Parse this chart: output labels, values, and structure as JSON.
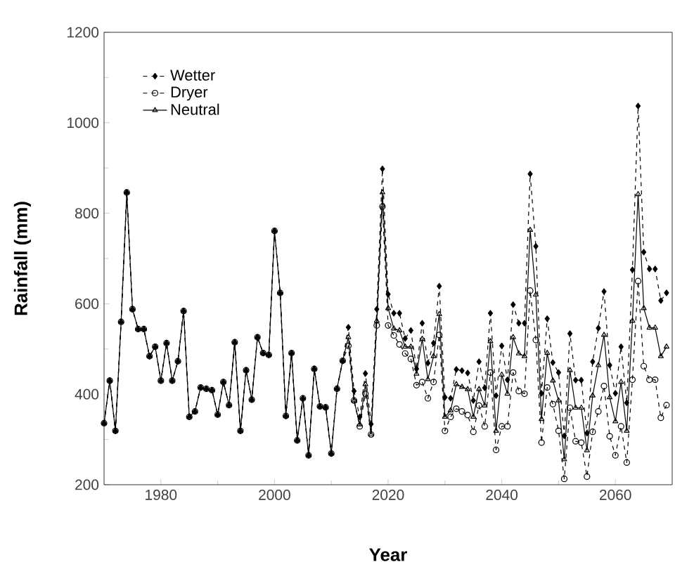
{
  "chart_data": {
    "type": "line",
    "xlabel": "Year",
    "ylabel": "Rainfall (mm)",
    "x": [
      1970,
      1971,
      1972,
      1973,
      1974,
      1975,
      1976,
      1977,
      1978,
      1979,
      1980,
      1981,
      1982,
      1983,
      1984,
      1985,
      1986,
      1987,
      1988,
      1989,
      1990,
      1991,
      1992,
      1993,
      1994,
      1995,
      1996,
      1997,
      1998,
      1999,
      2000,
      2001,
      2002,
      2003,
      2004,
      2005,
      2006,
      2007,
      2008,
      2009,
      2010,
      2011,
      2012,
      2013,
      2014,
      2015,
      2016,
      2017,
      2018,
      2019,
      2020,
      2021,
      2022,
      2023,
      2024,
      2025,
      2026,
      2027,
      2028,
      2029,
      2030,
      2031,
      2032,
      2033,
      2034,
      2035,
      2036,
      2037,
      2038,
      2039,
      2040,
      2041,
      2042,
      2043,
      2044,
      2045,
      2046,
      2047,
      2048,
      2049,
      2050,
      2051,
      2052,
      2053,
      2054,
      2055,
      2056,
      2057,
      2058,
      2059,
      2060,
      2061,
      2062,
      2063,
      2064,
      2065,
      2066,
      2067,
      2068,
      2069
    ],
    "series": [
      {
        "name": "Wetter",
        "color": "#000000",
        "marker": "diamond",
        "line_style": "dashed",
        "values": [
          336,
          430,
          319,
          560,
          846,
          588,
          544,
          544,
          484,
          505,
          430,
          513,
          430,
          473,
          584,
          350,
          362,
          415,
          412,
          409,
          355,
          427,
          376,
          515,
          319,
          453,
          388,
          526,
          491,
          487,
          761,
          624,
          352,
          491,
          298,
          391,
          265,
          456,
          373,
          371,
          269,
          412,
          474,
          548,
          407,
          350,
          446,
          334,
          588,
          898,
          621,
          579,
          579,
          523,
          541,
          456,
          557,
          469,
          513,
          639,
          393,
          391,
          455,
          452,
          447,
          386,
          472,
          414,
          579,
          397,
          507,
          432,
          598,
          557,
          557,
          887,
          727,
          402,
          567,
          470,
          448,
          308,
          534,
          431,
          431,
          314,
          472,
          546,
          627,
          464,
          402,
          505,
          381,
          675,
          1037,
          714,
          677,
          677,
          607,
          624
        ]
      },
      {
        "name": "Dryer",
        "color": "#000000",
        "marker": "circle",
        "line_style": "dashed",
        "values": [
          336,
          430,
          319,
          560,
          846,
          588,
          544,
          544,
          484,
          505,
          430,
          513,
          430,
          473,
          584,
          350,
          362,
          415,
          412,
          409,
          355,
          427,
          376,
          515,
          319,
          453,
          388,
          526,
          491,
          487,
          761,
          624,
          352,
          491,
          298,
          391,
          265,
          456,
          373,
          371,
          269,
          412,
          474,
          507,
          386,
          329,
          401,
          311,
          552,
          815,
          552,
          530,
          510,
          490,
          478,
          420,
          427,
          391,
          427,
          531,
          319,
          350,
          368,
          362,
          354,
          317,
          375,
          329,
          448,
          277,
          329,
          329,
          448,
          407,
          401,
          629,
          520,
          293,
          415,
          378,
          319,
          213,
          370,
          296,
          293,
          218,
          317,
          362,
          418,
          307,
          265,
          329,
          249,
          432,
          650,
          462,
          432,
          432,
          348,
          376
        ]
      },
      {
        "name": "Neutral",
        "color": "#000000",
        "marker": "triangle",
        "line_style": "solid",
        "values": [
          336,
          430,
          319,
          560,
          846,
          588,
          544,
          544,
          484,
          505,
          430,
          513,
          430,
          473,
          584,
          350,
          362,
          415,
          412,
          409,
          355,
          427,
          376,
          515,
          319,
          453,
          388,
          526,
          491,
          487,
          761,
          624,
          352,
          491,
          298,
          391,
          265,
          456,
          373,
          371,
          269,
          412,
          474,
          526,
          386,
          333,
          422,
          311,
          562,
          846,
          590,
          545,
          541,
          505,
          505,
          445,
          522,
          433,
          484,
          577,
          350,
          364,
          422,
          416,
          411,
          350,
          411,
          375,
          517,
          319,
          443,
          401,
          526,
          490,
          484,
          763,
          620,
          345,
          491,
          430,
          386,
          256,
          453,
          370,
          370,
          276,
          397,
          464,
          531,
          393,
          340,
          427,
          319,
          562,
          842,
          590,
          547,
          547,
          484,
          505
        ]
      }
    ],
    "xlim": [
      1970,
      2070
    ],
    "xticks": [
      1980,
      2000,
      2020,
      2040,
      2060
    ],
    "ylim": [
      200,
      1200
    ],
    "yticks": [
      200,
      400,
      600,
      800,
      1000,
      1200
    ],
    "grid": false,
    "legend": "top left"
  }
}
